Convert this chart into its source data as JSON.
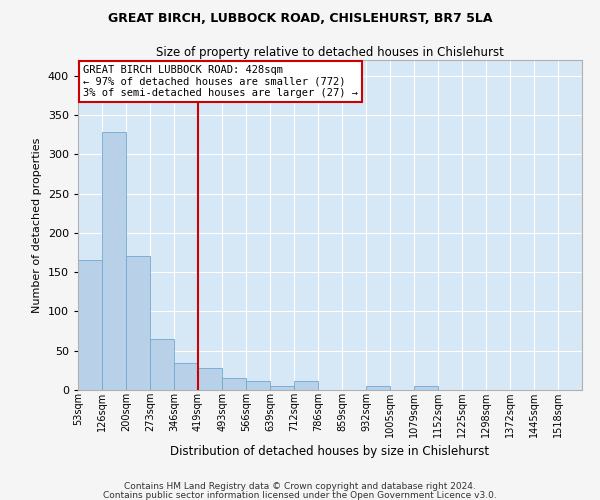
{
  "title1": "GREAT BIRCH, LUBBOCK ROAD, CHISLEHURST, BR7 5LA",
  "title2": "Size of property relative to detached houses in Chislehurst",
  "xlabel": "Distribution of detached houses by size in Chislehurst",
  "ylabel": "Number of detached properties",
  "footer1": "Contains HM Land Registry data © Crown copyright and database right 2024.",
  "footer2": "Contains public sector information licensed under the Open Government Licence v3.0.",
  "annotation_line1": "GREAT BIRCH LUBBOCK ROAD: 428sqm",
  "annotation_line2": "← 97% of detached houses are smaller (772)",
  "annotation_line3": "3% of semi-detached houses are larger (27) →",
  "bar_color": "#b8d0e8",
  "bar_edge_color": "#6fa8d0",
  "bg_color": "#d6e8f5",
  "grid_color": "#ffffff",
  "fig_color": "#f5f5f5",
  "red_line_color": "#cc0000",
  "annotation_box_color": "#ffffff",
  "annotation_box_edge": "#cc0000",
  "categories": [
    "53sqm",
    "126sqm",
    "200sqm",
    "273sqm",
    "346sqm",
    "419sqm",
    "493sqm",
    "566sqm",
    "639sqm",
    "712sqm",
    "786sqm",
    "859sqm",
    "932sqm",
    "1005sqm",
    "1079sqm",
    "1152sqm",
    "1225sqm",
    "1298sqm",
    "1372sqm",
    "1445sqm",
    "1518sqm"
  ],
  "bin_edges": [
    53,
    126,
    200,
    273,
    346,
    419,
    493,
    566,
    639,
    712,
    786,
    859,
    932,
    1005,
    1079,
    1152,
    1225,
    1298,
    1372,
    1445,
    1518
  ],
  "bin_width": 73,
  "values": [
    165,
    328,
    170,
    65,
    35,
    28,
    15,
    12,
    5,
    12,
    0,
    0,
    5,
    0,
    5,
    0,
    0,
    0,
    0,
    0,
    0
  ],
  "red_line_x": 419,
  "ylim": [
    0,
    420
  ],
  "yticks": [
    0,
    50,
    100,
    150,
    200,
    250,
    300,
    350,
    400
  ],
  "title1_fontsize": 9,
  "title2_fontsize": 8.5,
  "xlabel_fontsize": 8.5,
  "ylabel_fontsize": 8,
  "xtick_fontsize": 7,
  "ytick_fontsize": 8,
  "footer_fontsize": 6.5,
  "annotation_fontsize": 7.5
}
